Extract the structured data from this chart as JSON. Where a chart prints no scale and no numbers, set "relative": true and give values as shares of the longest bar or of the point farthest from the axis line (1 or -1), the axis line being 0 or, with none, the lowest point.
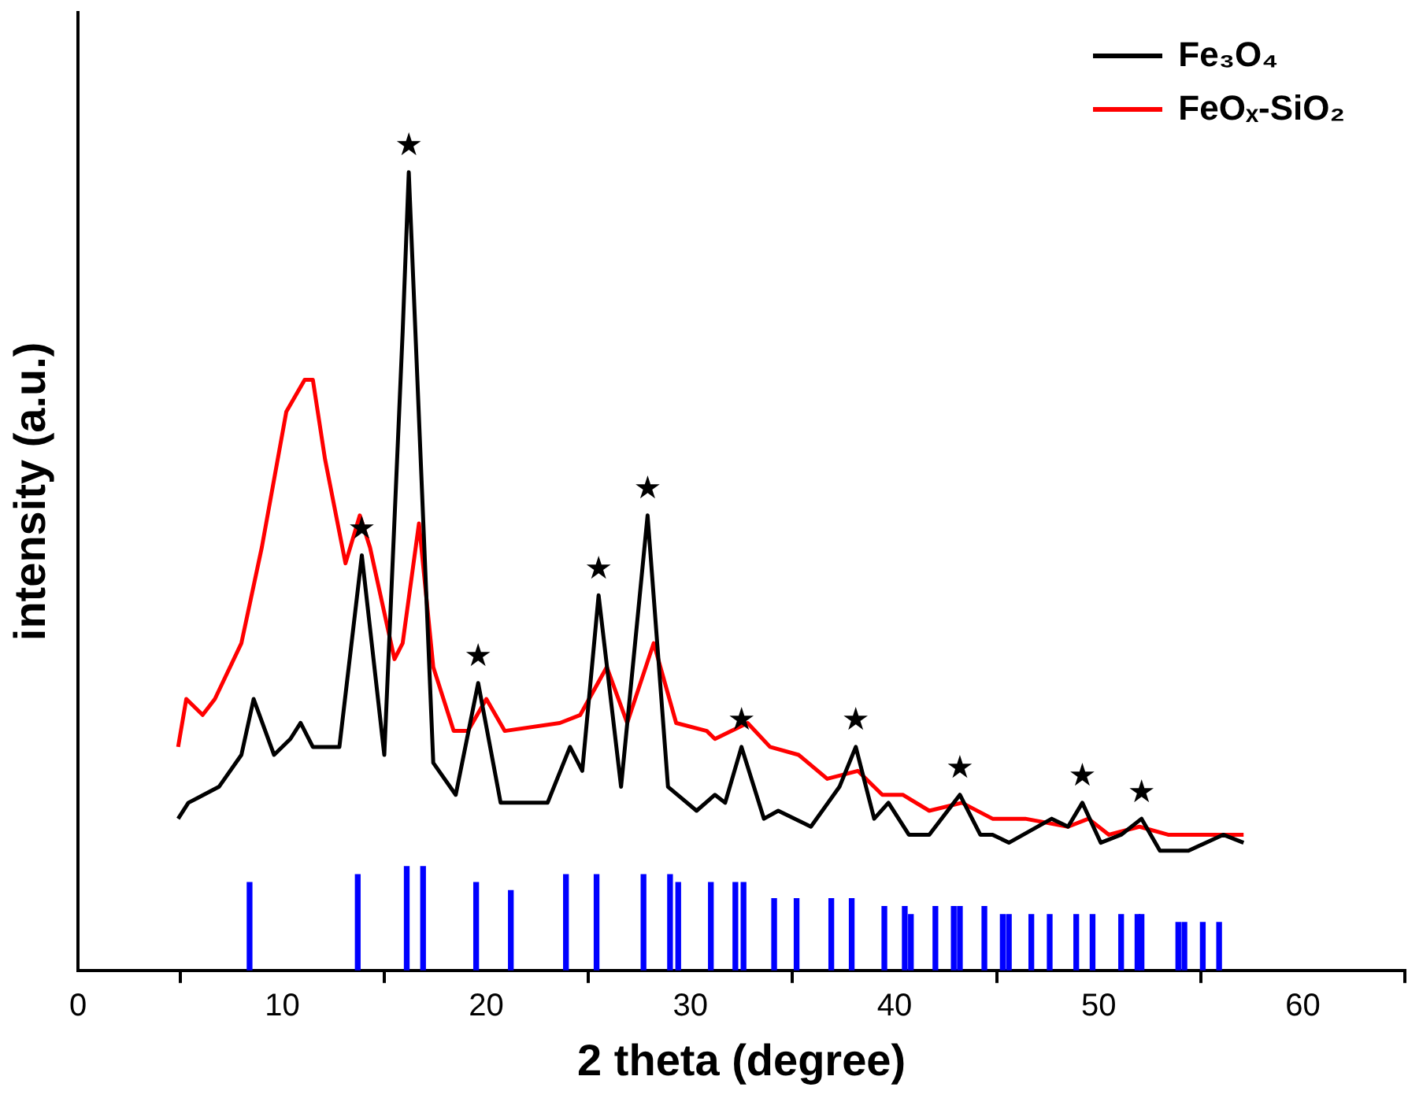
{
  "chart_data": {
    "type": "line",
    "xlabel": "2 theta (degree)",
    "ylabel": "intensity (a.u.)",
    "relative": true,
    "xlim": [
      0,
      65
    ],
    "xticks": [
      0,
      10,
      20,
      30,
      40,
      50,
      60
    ],
    "tick_labels": "x",
    "legend": "top right",
    "series": [
      {
        "name": "Fe₃O₄",
        "color": "#000000",
        "x": [
          4.9,
          5.4,
          6.9,
          8.0,
          8.6,
          9.6,
          10.4,
          10.9,
          11.5,
          12.8,
          13.9,
          15.0,
          15.9,
          16.2,
          17.4,
          18.5,
          19.6,
          20.7,
          23.0,
          24.1,
          24.7,
          25.5,
          26.6,
          27.9,
          28.9,
          30.3,
          31.2,
          31.7,
          32.5,
          33.6,
          34.3,
          35.9,
          37.3,
          38.1,
          39.0,
          39.7,
          40.7,
          41.7,
          43.2,
          44.2,
          44.8,
          45.6,
          47.7,
          48.5,
          49.2,
          50.1,
          51.1,
          52.1,
          53.0,
          54.4,
          56.1,
          57.1
        ],
        "values": [
          0.19,
          0.21,
          0.23,
          0.27,
          0.34,
          0.27,
          0.29,
          0.31,
          0.28,
          0.28,
          0.52,
          0.27,
          0.8,
          1,
          0.26,
          0.22,
          0.36,
          0.21,
          0.21,
          0.28,
          0.25,
          0.47,
          0.23,
          0.57,
          0.23,
          0.2,
          0.22,
          0.21,
          0.28,
          0.19,
          0.2,
          0.18,
          0.23,
          0.28,
          0.19,
          0.21,
          0.17,
          0.17,
          0.22,
          0.17,
          0.17,
          0.16,
          0.19,
          0.18,
          0.21,
          0.16,
          0.17,
          0.19,
          0.15,
          0.15,
          0.17,
          0.16
        ]
      },
      {
        "name": "FeOₓ-SiO₂",
        "color": "#ff0000",
        "x": [
          4.9,
          5.3,
          6.1,
          6.7,
          8.0,
          9.0,
          10.2,
          11.1,
          11.5,
          12.1,
          13.1,
          13.8,
          14.3,
          15.5,
          15.9,
          16.7,
          17.4,
          18.4,
          19.1,
          20.0,
          20.9,
          23.6,
          24.6,
          25.9,
          26.9,
          28.2,
          29.3,
          30.8,
          31.2,
          32.8,
          33.9,
          35.3,
          36.7,
          38.2,
          39.4,
          40.4,
          41.7,
          43.3,
          44.8,
          46.4,
          48.5,
          49.5,
          50.5,
          52.0,
          53.4,
          55.2,
          57.1
        ],
        "values": [
          0.28,
          0.34,
          0.32,
          0.34,
          0.41,
          0.53,
          0.7,
          0.74,
          0.74,
          0.64,
          0.51,
          0.57,
          0.53,
          0.39,
          0.41,
          0.56,
          0.38,
          0.3,
          0.3,
          0.34,
          0.3,
          0.31,
          0.32,
          0.38,
          0.31,
          0.41,
          0.31,
          0.3,
          0.29,
          0.31,
          0.28,
          0.27,
          0.24,
          0.25,
          0.22,
          0.22,
          0.2,
          0.21,
          0.19,
          0.19,
          0.18,
          0.19,
          0.17,
          0.18,
          0.17,
          0.17,
          0.17
        ]
      },
      {
        "color": "#0000ff",
        "type": "bar",
        "x": [
          8.4,
          13.7,
          16.1,
          16.9,
          19.5,
          21.2,
          23.9,
          25.4,
          27.7,
          29.0,
          29.4,
          31.0,
          32.2,
          32.6,
          34.1,
          35.2,
          36.9,
          37.9,
          39.5,
          40.5,
          40.8,
          42.0,
          42.9,
          43.2,
          44.4,
          45.3,
          45.6,
          46.7,
          47.6,
          48.9,
          49.7,
          51.1,
          51.9,
          52.1,
          53.9,
          54.2,
          55.1,
          55.9
        ],
        "values": [
          0.11,
          0.12,
          0.13,
          0.13,
          0.11,
          0.1,
          0.12,
          0.12,
          0.12,
          0.12,
          0.11,
          0.11,
          0.11,
          0.11,
          0.09,
          0.09,
          0.09,
          0.09,
          0.08,
          0.08,
          0.07,
          0.08,
          0.08,
          0.08,
          0.08,
          0.07,
          0.07,
          0.07,
          0.07,
          0.07,
          0.07,
          0.07,
          0.07,
          0.07,
          0.06,
          0.06,
          0.06,
          0.06
        ]
      }
    ],
    "annotations": [
      {
        "text": "★",
        "x": 13.9,
        "y": 0.52
      },
      {
        "text": "★",
        "x": 16.2,
        "y": 1
      },
      {
        "text": "★",
        "x": 19.6,
        "y": 0.36
      },
      {
        "text": "★",
        "x": 25.5,
        "y": 0.47
      },
      {
        "text": "★",
        "x": 27.9,
        "y": 0.57
      },
      {
        "text": "★",
        "x": 32.5,
        "y": 0.28
      },
      {
        "text": "★",
        "x": 38.1,
        "y": 0.28
      },
      {
        "text": "★",
        "x": 43.2,
        "y": 0.22
      },
      {
        "text": "★",
        "x": 49.2,
        "y": 0.21
      },
      {
        "text": "★",
        "x": 52.1,
        "y": 0.19
      }
    ]
  }
}
